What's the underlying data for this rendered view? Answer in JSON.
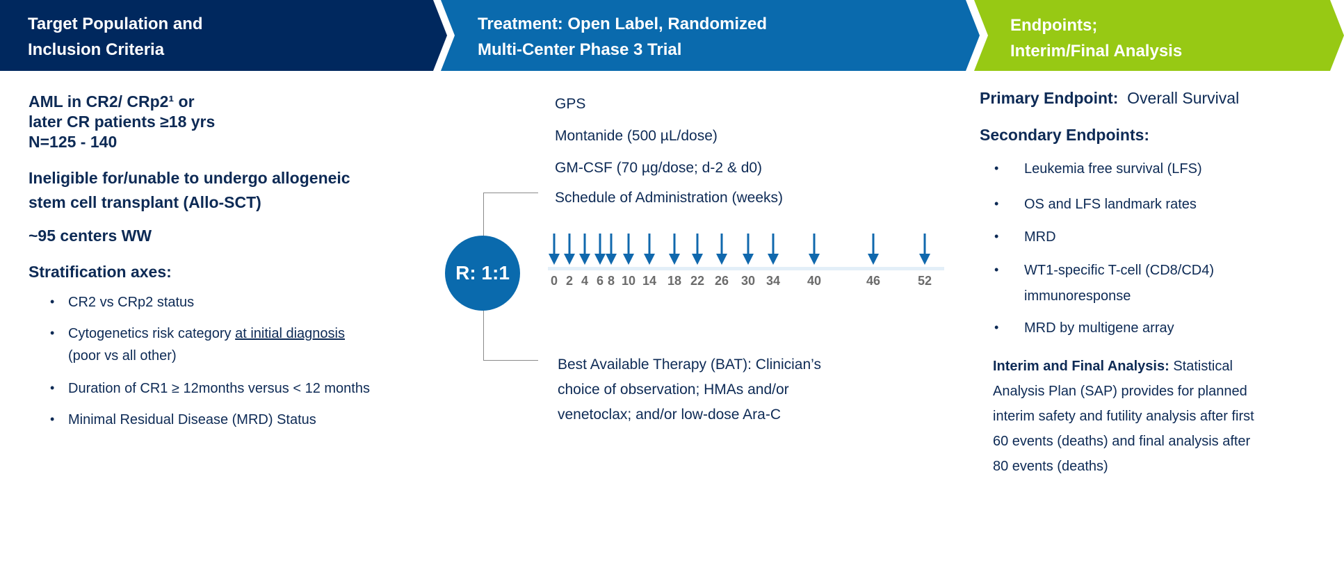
{
  "colors": {
    "navy": "#00285e",
    "blue": "#0a6aad",
    "green": "#97c914",
    "text": "#0d2a55",
    "week_label": "#6b6b6b",
    "timeline": "#e3eff8"
  },
  "header": {
    "population": [
      "Target Population and",
      "Inclusion Criteria"
    ],
    "treatment": [
      "Treatment: Open Label, Randomized",
      "Multi-Center Phase 3 Trial"
    ],
    "endpoints": [
      "Endpoints;",
      "Interim/Final Analysis"
    ]
  },
  "population": {
    "criteria": [
      "AML in CR2/ CRp2¹ or",
      "later CR patients ≥18 yrs",
      "N=125 - 140"
    ],
    "ineligible": [
      "Ineligible for/unable to undergo allogeneic",
      "stem cell transplant (Allo-SCT)"
    ],
    "centers": "~95 centers WW",
    "stratification_title": "Stratification axes:",
    "stratification": [
      {
        "text": "CR2 vs CRp2 status"
      },
      {
        "text": "Cytogenetics risk category ",
        "underlined": "at initial diagnosis",
        "line2": "(poor vs all other)"
      },
      {
        "text": "Duration of CR1 ≥ 12months versus < 12 months"
      },
      {
        "text": "Minimal Residual Disease (MRD) Status"
      }
    ]
  },
  "treatment": {
    "randomization": "R: 1:1",
    "arm1": [
      "GPS",
      "Montanide (500 µL/dose)",
      "GM-CSF (70 µg/dose; d-2 & d0)",
      "Schedule of Administration (weeks)"
    ],
    "schedule_weeks": [
      "0",
      "2",
      "4",
      "6",
      "8",
      "10",
      "14",
      "18",
      "22",
      "26",
      "30",
      "34",
      "40",
      "46",
      "52"
    ],
    "arm2": [
      "Best Available Therapy (BAT): Clinician’s",
      "choice of observation; HMAs and/or",
      "venetoclax; and/or low-dose Ara-C"
    ]
  },
  "endpoints": {
    "primary_label": "Primary Endpoint:",
    "primary_value": "Overall Survival",
    "secondary_title": "Secondary Endpoints:",
    "secondary": [
      "Leukemia free survival (LFS)",
      "OS and LFS landmark rates",
      "MRD",
      "WT1-specific T-cell (CD8/CD4)",
      "immunoresponse",
      "MRD by multigene array"
    ],
    "interim_label": "Interim and Final Analysis:",
    "interim_lines": [
      " Statistical",
      "Analysis Plan (SAP) provides for planned",
      "interim safety and futility analysis after first",
      "60 events (deaths) and final analysis after",
      "80 events (deaths)"
    ]
  }
}
